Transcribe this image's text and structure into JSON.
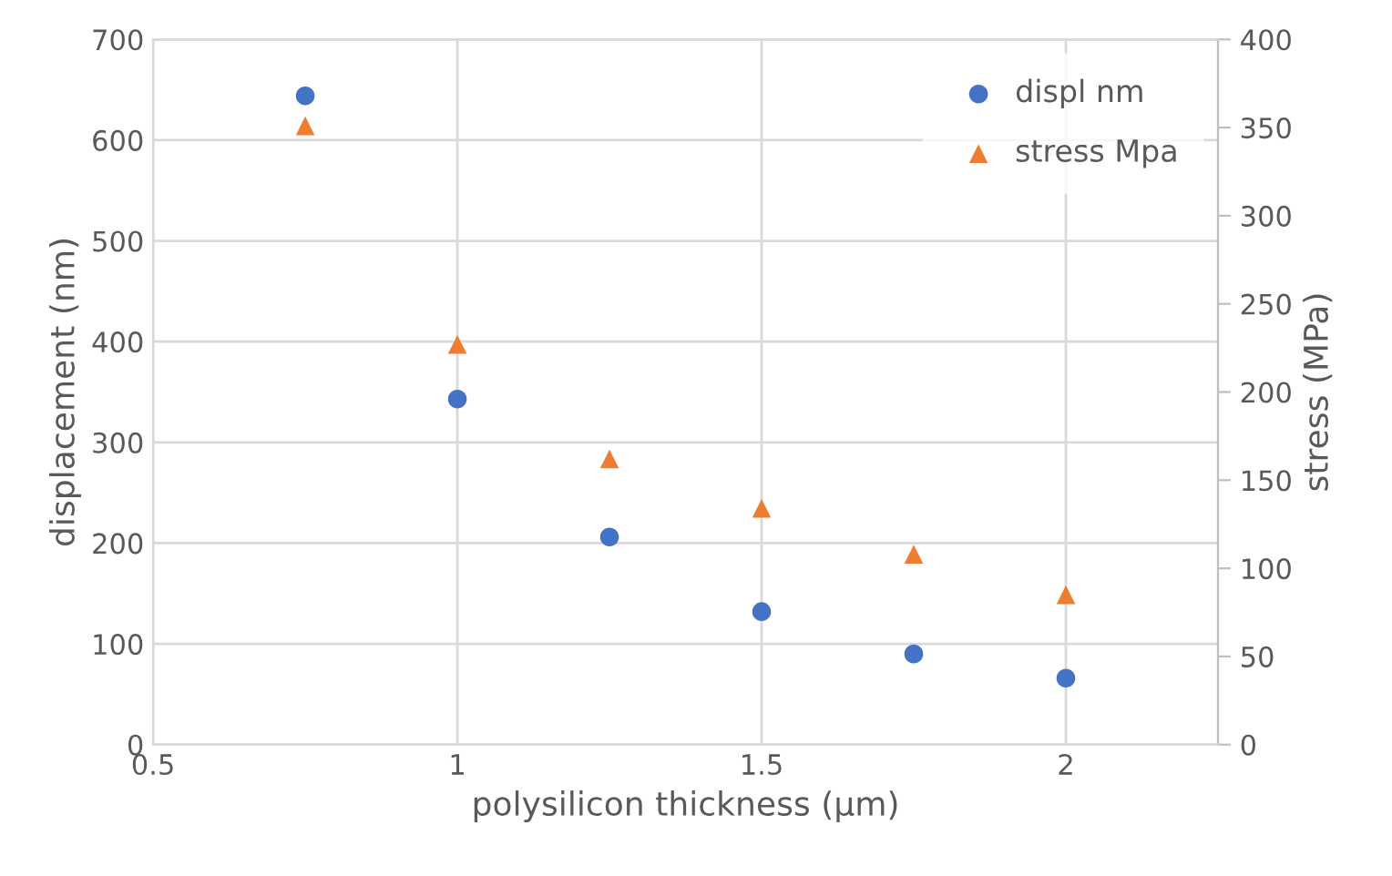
{
  "chart_data": {
    "type": "scatter",
    "xlabel": "polysilicon thickness (µm)",
    "ylabel": "displacement (nm)",
    "y2label": "stress (MPa)",
    "x": [
      0.75,
      1,
      1.25,
      1.5,
      1.75,
      2
    ],
    "series": [
      {
        "name": "displ nm",
        "color": "#4472c4",
        "marker": "circle",
        "values": [
          644,
          343,
          206,
          132,
          90,
          66
        ]
      },
      {
        "name": "stress Mpa",
        "color": "#ed7d31",
        "marker": "triangle",
        "axis": "y2",
        "values": [
          351,
          227,
          162,
          134,
          108,
          85
        ]
      }
    ],
    "xlim": [
      0.5,
      2.25
    ],
    "xticks": [
      0.5,
      1,
      1.5,
      2
    ],
    "ylim": [
      0,
      700
    ],
    "yticks": [
      0,
      100,
      200,
      300,
      400,
      500,
      600,
      700
    ],
    "y2lim": [
      0,
      400
    ],
    "y2ticks": [
      0,
      50,
      100,
      150,
      200,
      250,
      300,
      350,
      400
    ],
    "grid": true,
    "legend": "top right"
  }
}
